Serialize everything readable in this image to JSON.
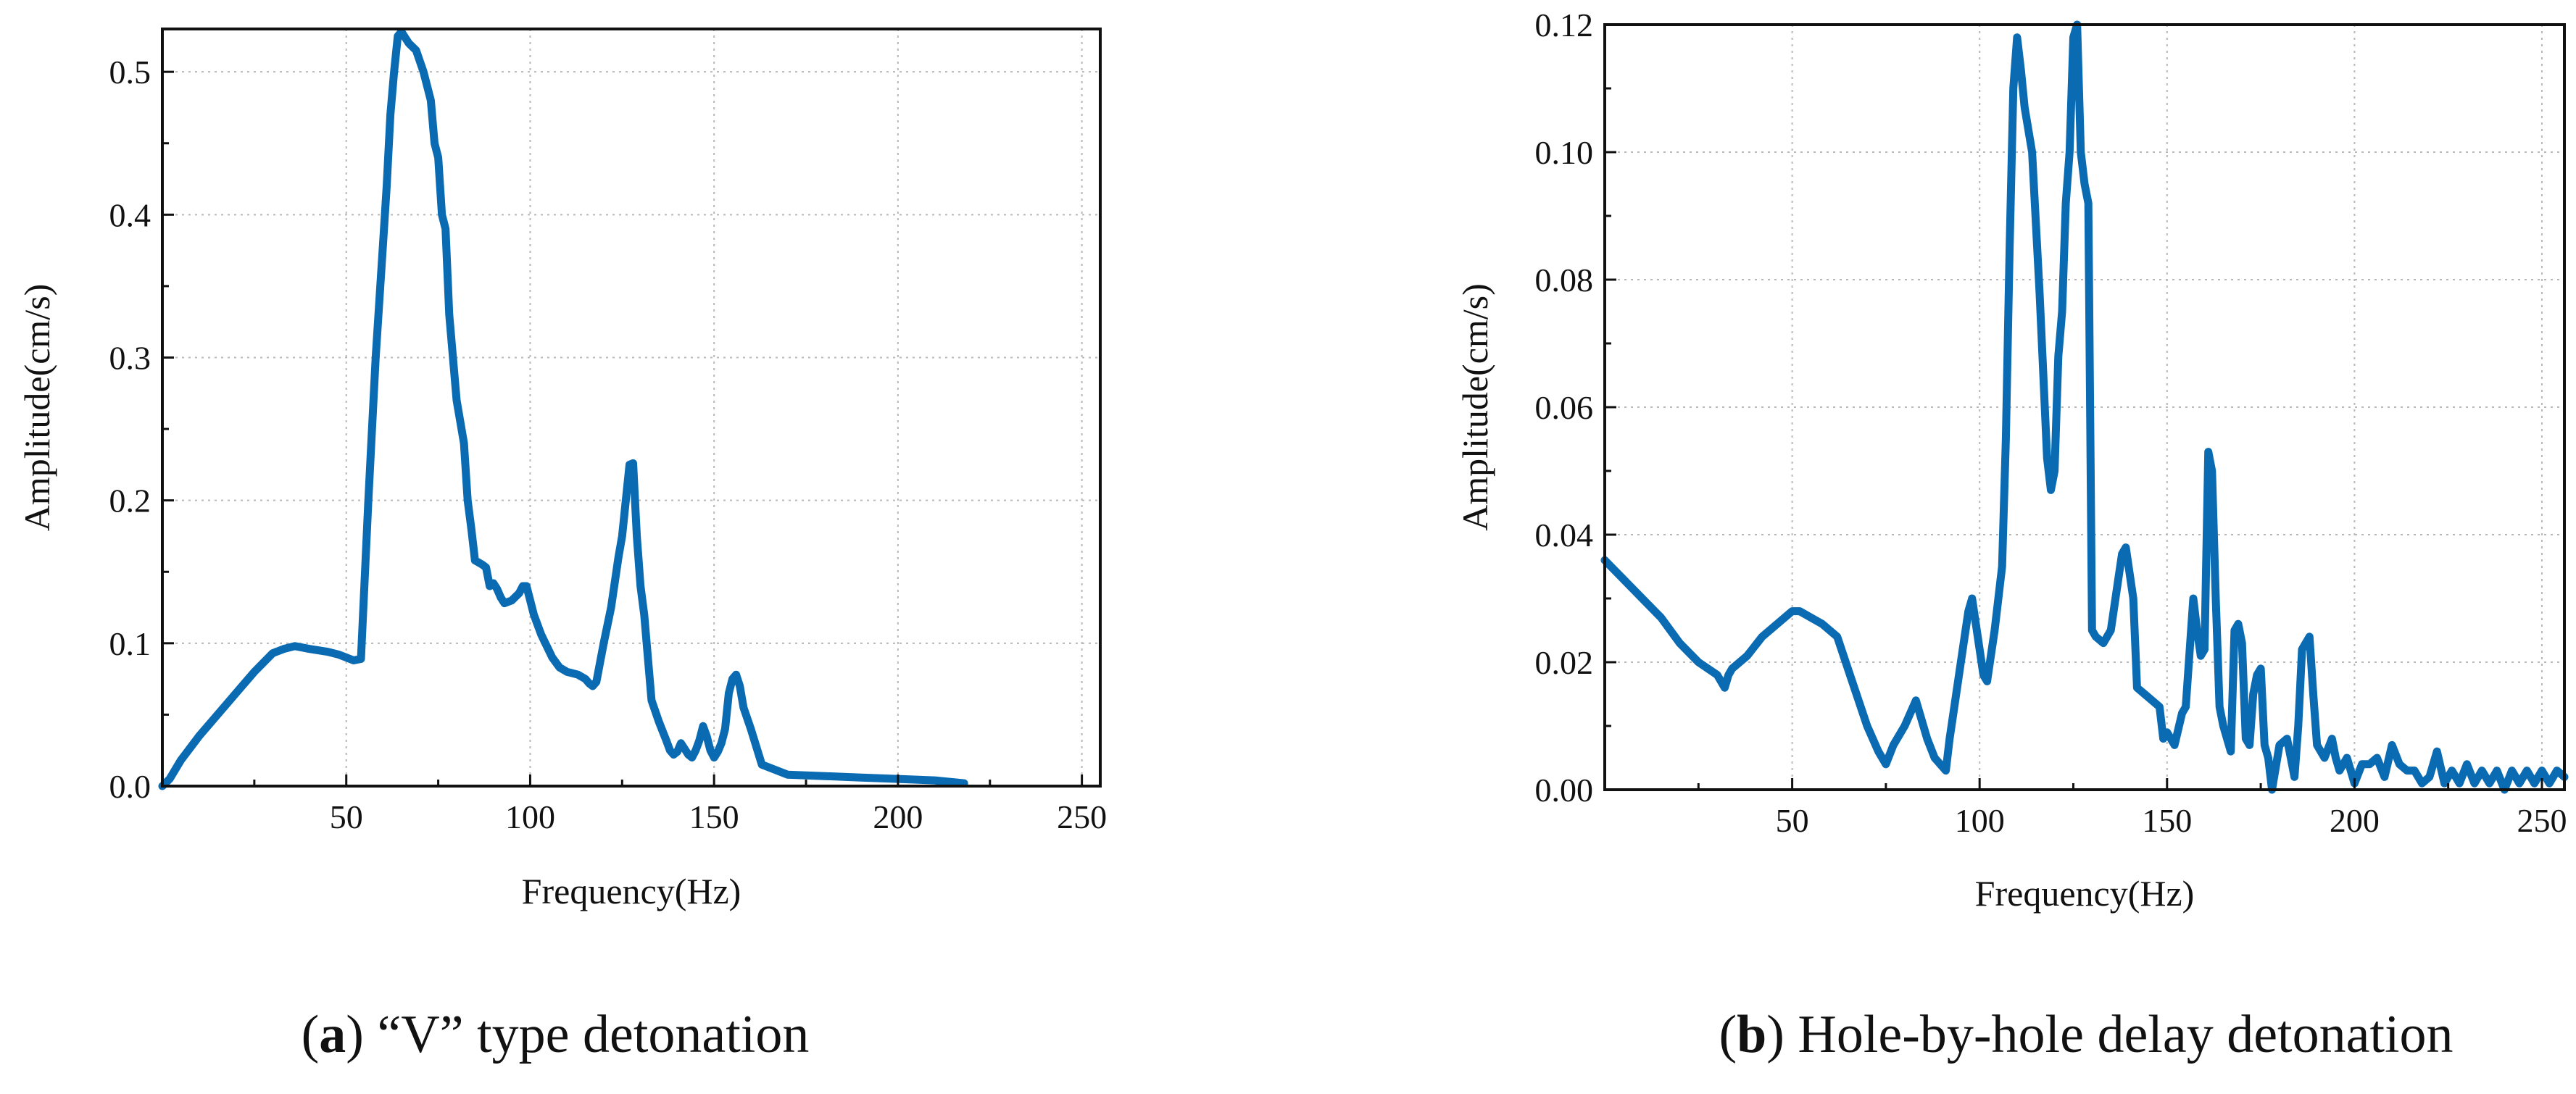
{
  "chart_data": [
    {
      "id": "a",
      "type": "line",
      "xlabel": "Frequency(Hz)",
      "ylabel": "Amplitude(cm/s)",
      "xlim": [
        0,
        255
      ],
      "ylim": [
        0,
        0.53
      ],
      "xticks": [
        50,
        100,
        150,
        200,
        250
      ],
      "yticks": [
        0.0,
        0.1,
        0.2,
        0.3,
        0.4,
        0.5
      ],
      "ytick_labels": [
        "0.0",
        "0.1",
        "0.2",
        "0.3",
        "0.4",
        "0.5"
      ],
      "grid": true,
      "caption_letter": "a",
      "caption_text": " “V” type detonation",
      "series": [
        {
          "name": "Amplitude",
          "color": "#0a6ab2",
          "x": [
            0,
            2,
            5,
            10,
            15,
            20,
            25,
            30,
            33,
            36,
            38,
            40,
            45,
            48,
            50,
            52,
            54,
            56,
            58,
            60,
            61,
            62,
            63,
            64,
            65,
            67,
            69,
            71,
            73,
            74,
            75,
            76,
            77,
            78,
            80,
            82,
            83,
            84,
            85,
            87,
            88,
            89,
            90,
            91,
            92,
            93,
            95,
            97,
            98,
            99,
            100,
            101,
            103,
            106,
            108,
            110,
            113,
            115,
            116,
            117,
            118,
            120,
            122,
            124,
            125,
            126,
            127,
            128,
            129,
            130,
            131,
            133,
            135,
            137,
            138,
            139,
            140,
            141,
            142,
            143,
            144,
            145,
            146,
            147,
            148,
            149,
            150,
            151,
            152,
            153,
            154,
            155,
            156,
            157,
            158,
            160,
            163,
            170,
            180,
            190,
            200,
            210,
            218
          ],
          "y": [
            0.0,
            0.005,
            0.018,
            0.035,
            0.05,
            0.065,
            0.08,
            0.093,
            0.096,
            0.098,
            0.097,
            0.096,
            0.094,
            0.092,
            0.09,
            0.088,
            0.089,
            0.2,
            0.3,
            0.38,
            0.42,
            0.47,
            0.5,
            0.525,
            0.528,
            0.52,
            0.515,
            0.5,
            0.48,
            0.45,
            0.44,
            0.4,
            0.39,
            0.33,
            0.27,
            0.24,
            0.2,
            0.18,
            0.158,
            0.155,
            0.153,
            0.14,
            0.142,
            0.138,
            0.132,
            0.128,
            0.13,
            0.135,
            0.14,
            0.14,
            0.13,
            0.12,
            0.106,
            0.09,
            0.083,
            0.08,
            0.078,
            0.075,
            0.072,
            0.07,
            0.073,
            0.1,
            0.125,
            0.16,
            0.175,
            0.2,
            0.225,
            0.226,
            0.175,
            0.14,
            0.12,
            0.06,
            0.045,
            0.032,
            0.025,
            0.022,
            0.024,
            0.03,
            0.026,
            0.022,
            0.02,
            0.025,
            0.032,
            0.042,
            0.035,
            0.025,
            0.02,
            0.024,
            0.03,
            0.04,
            0.065,
            0.075,
            0.078,
            0.07,
            0.055,
            0.04,
            0.015,
            0.008,
            0.007,
            0.006,
            0.005,
            0.004,
            0.002
          ]
        }
      ]
    },
    {
      "id": "b",
      "type": "line",
      "xlabel": "Frequency(Hz)",
      "ylabel": "Amplitude(cm/s)",
      "xlim": [
        0,
        256
      ],
      "ylim": [
        0,
        0.12
      ],
      "xticks": [
        50,
        100,
        150,
        200,
        250
      ],
      "yticks": [
        0.0,
        0.02,
        0.04,
        0.06,
        0.08,
        0.1,
        0.12
      ],
      "ytick_labels": [
        "0.00",
        "0.02",
        "0.04",
        "0.06",
        "0.08",
        "0.10",
        "0.12"
      ],
      "grid": true,
      "caption_letter": "b",
      "caption_text": " Hole-by-hole delay detonation",
      "series": [
        {
          "name": "Amplitude",
          "color": "#0a6ab2",
          "x": [
            0,
            5,
            10,
            15,
            20,
            25,
            30,
            32,
            33,
            34,
            38,
            42,
            46,
            50,
            52,
            55,
            58,
            62,
            66,
            70,
            73,
            75,
            77,
            80,
            83,
            86,
            88,
            91,
            92,
            93,
            95,
            97,
            98,
            100,
            101,
            102,
            104,
            106,
            107,
            108,
            109,
            110,
            111,
            112,
            114,
            116,
            118,
            119,
            120,
            121,
            122,
            123,
            124,
            125,
            126,
            127,
            128,
            129,
            130,
            131,
            133,
            135,
            137,
            138,
            139,
            141,
            142,
            144,
            146,
            148,
            149,
            150,
            152,
            154,
            155,
            157,
            158,
            159,
            160,
            161,
            162,
            163,
            164,
            165,
            167,
            168,
            169,
            170,
            171,
            172,
            173,
            174,
            175,
            176,
            177,
            178,
            180,
            182,
            183,
            184,
            185,
            186,
            187,
            188,
            189,
            190,
            192,
            194,
            195,
            196,
            198,
            200,
            202,
            204,
            206,
            208,
            210,
            212,
            214,
            216,
            218,
            220,
            222,
            224,
            226,
            228,
            230,
            232,
            234,
            236,
            238,
            240,
            242,
            244,
            246,
            248,
            250,
            252,
            254,
            256
          ],
          "y": [
            0.036,
            0.033,
            0.03,
            0.027,
            0.023,
            0.02,
            0.018,
            0.016,
            0.018,
            0.019,
            0.021,
            0.024,
            0.026,
            0.028,
            0.028,
            0.027,
            0.026,
            0.024,
            0.017,
            0.01,
            0.006,
            0.004,
            0.007,
            0.01,
            0.014,
            0.008,
            0.005,
            0.003,
            0.008,
            0.012,
            0.02,
            0.028,
            0.03,
            0.022,
            0.018,
            0.017,
            0.025,
            0.035,
            0.055,
            0.085,
            0.11,
            0.118,
            0.113,
            0.107,
            0.1,
            0.078,
            0.052,
            0.047,
            0.05,
            0.068,
            0.075,
            0.092,
            0.1,
            0.118,
            0.12,
            0.1,
            0.095,
            0.092,
            0.025,
            0.024,
            0.023,
            0.025,
            0.033,
            0.037,
            0.038,
            0.03,
            0.016,
            0.015,
            0.014,
            0.013,
            0.008,
            0.009,
            0.007,
            0.012,
            0.013,
            0.03,
            0.025,
            0.021,
            0.022,
            0.053,
            0.05,
            0.03,
            0.013,
            0.01,
            0.006,
            0.025,
            0.026,
            0.023,
            0.008,
            0.007,
            0.015,
            0.018,
            0.019,
            0.007,
            0.005,
            0.0,
            0.007,
            0.008,
            0.005,
            0.002,
            0.01,
            0.022,
            0.023,
            0.024,
            0.015,
            0.007,
            0.005,
            0.008,
            0.005,
            0.003,
            0.005,
            0.001,
            0.004,
            0.004,
            0.005,
            0.002,
            0.007,
            0.004,
            0.003,
            0.003,
            0.001,
            0.002,
            0.006,
            0.001,
            0.003,
            0.001,
            0.004,
            0.001,
            0.003,
            0.001,
            0.003,
            0.0,
            0.003,
            0.001,
            0.003,
            0.001,
            0.003,
            0.001,
            0.003,
            0.002
          ]
        }
      ]
    }
  ]
}
